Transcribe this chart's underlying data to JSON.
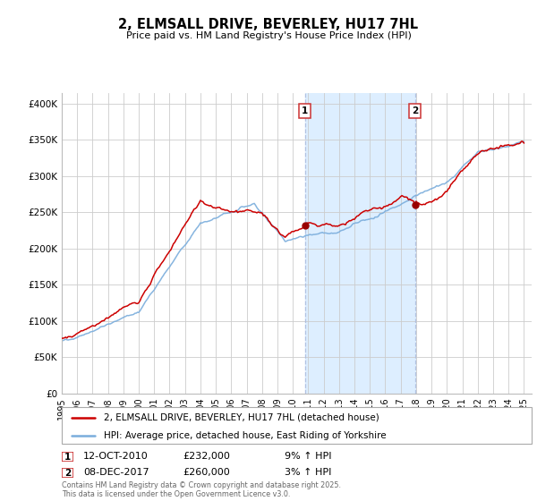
{
  "title": "2, ELMSALL DRIVE, BEVERLEY, HU17 7HL",
  "subtitle": "Price paid vs. HM Land Registry's House Price Index (HPI)",
  "ylabel_ticks": [
    "£0",
    "£50K",
    "£100K",
    "£150K",
    "£200K",
    "£250K",
    "£300K",
    "£350K",
    "£400K"
  ],
  "ytick_values": [
    0,
    50000,
    100000,
    150000,
    200000,
    250000,
    300000,
    350000,
    400000
  ],
  "ylim": [
    0,
    415000
  ],
  "xlim_start": 1995.0,
  "xlim_end": 2025.5,
  "sale1_x": 2010.78,
  "sale1_y": 232000,
  "sale1_label": "1",
  "sale1_date": "12-OCT-2010",
  "sale1_price": "£232,000",
  "sale1_hpi": "9% ↑ HPI",
  "sale2_x": 2017.92,
  "sale2_y": 260000,
  "sale2_label": "2",
  "sale2_date": "08-DEC-2017",
  "sale2_price": "£260,000",
  "sale2_hpi": "3% ↑ HPI",
  "property_color": "#cc0000",
  "hpi_color": "#7aaddc",
  "shade_color": "#ddeeff",
  "background_color": "#ffffff",
  "grid_color": "#cccccc",
  "legend_property": "2, ELMSALL DRIVE, BEVERLEY, HU17 7HL (detached house)",
  "legend_hpi": "HPI: Average price, detached house, East Riding of Yorkshire",
  "footer": "Contains HM Land Registry data © Crown copyright and database right 2025.\nThis data is licensed under the Open Government Licence v3.0.",
  "figsize": [
    6.0,
    5.6
  ],
  "dpi": 100
}
